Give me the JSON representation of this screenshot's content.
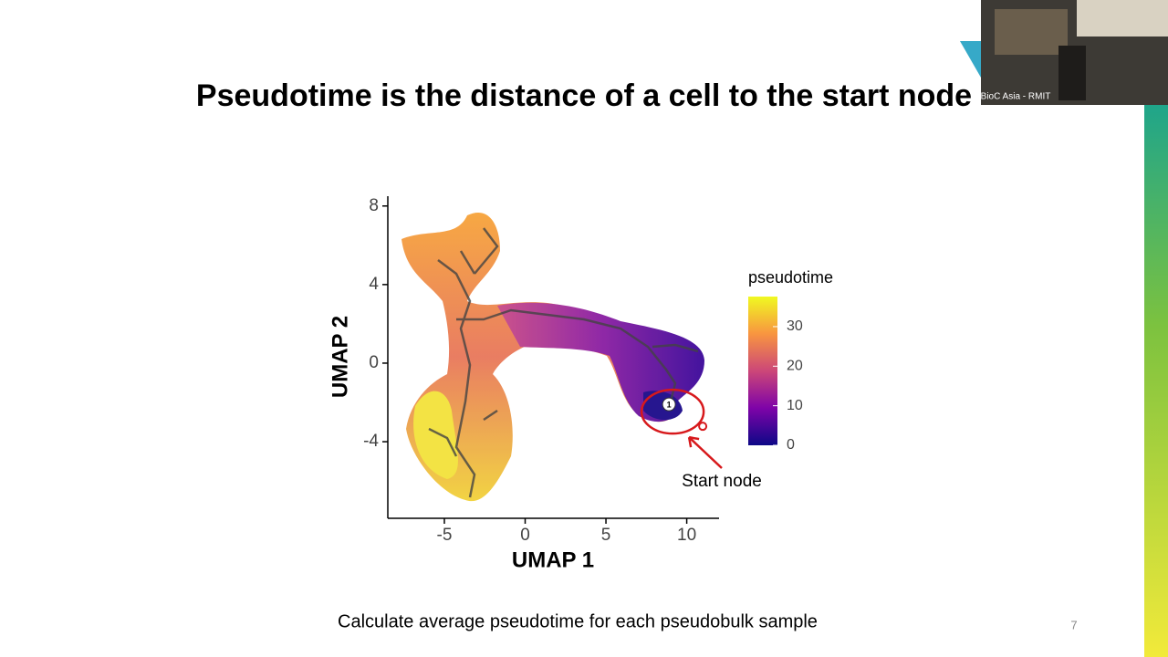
{
  "slide": {
    "title": "Pseudotime is the distance of a cell to the start node",
    "caption": "Calculate average pseudotime for each pseudobulk sample",
    "page_number": "7"
  },
  "video_overlay": {
    "label": "BioC Asia - RMIT"
  },
  "chart_data": {
    "type": "scatter",
    "x_label": "UMAP 1",
    "y_label": "UMAP 2",
    "xlim": [
      -8.5,
      12
    ],
    "ylim": [
      -7.9,
      8.5
    ],
    "xticks": [
      -5,
      0,
      5,
      10
    ],
    "yticks": [
      -4,
      0,
      4,
      8
    ],
    "colorbar": {
      "title": "pseudotime",
      "lim": [
        0,
        37.6
      ],
      "ticks": [
        0,
        10,
        20,
        30
      ],
      "colors": [
        "#0d0887",
        "#7e03a8",
        "#cc4778",
        "#f89540",
        "#f0f921"
      ]
    },
    "start_node": {
      "label": "1",
      "x": 8.9,
      "y": -2.1
    },
    "annotation": "Start node",
    "annotation_color": "#d7191c"
  }
}
